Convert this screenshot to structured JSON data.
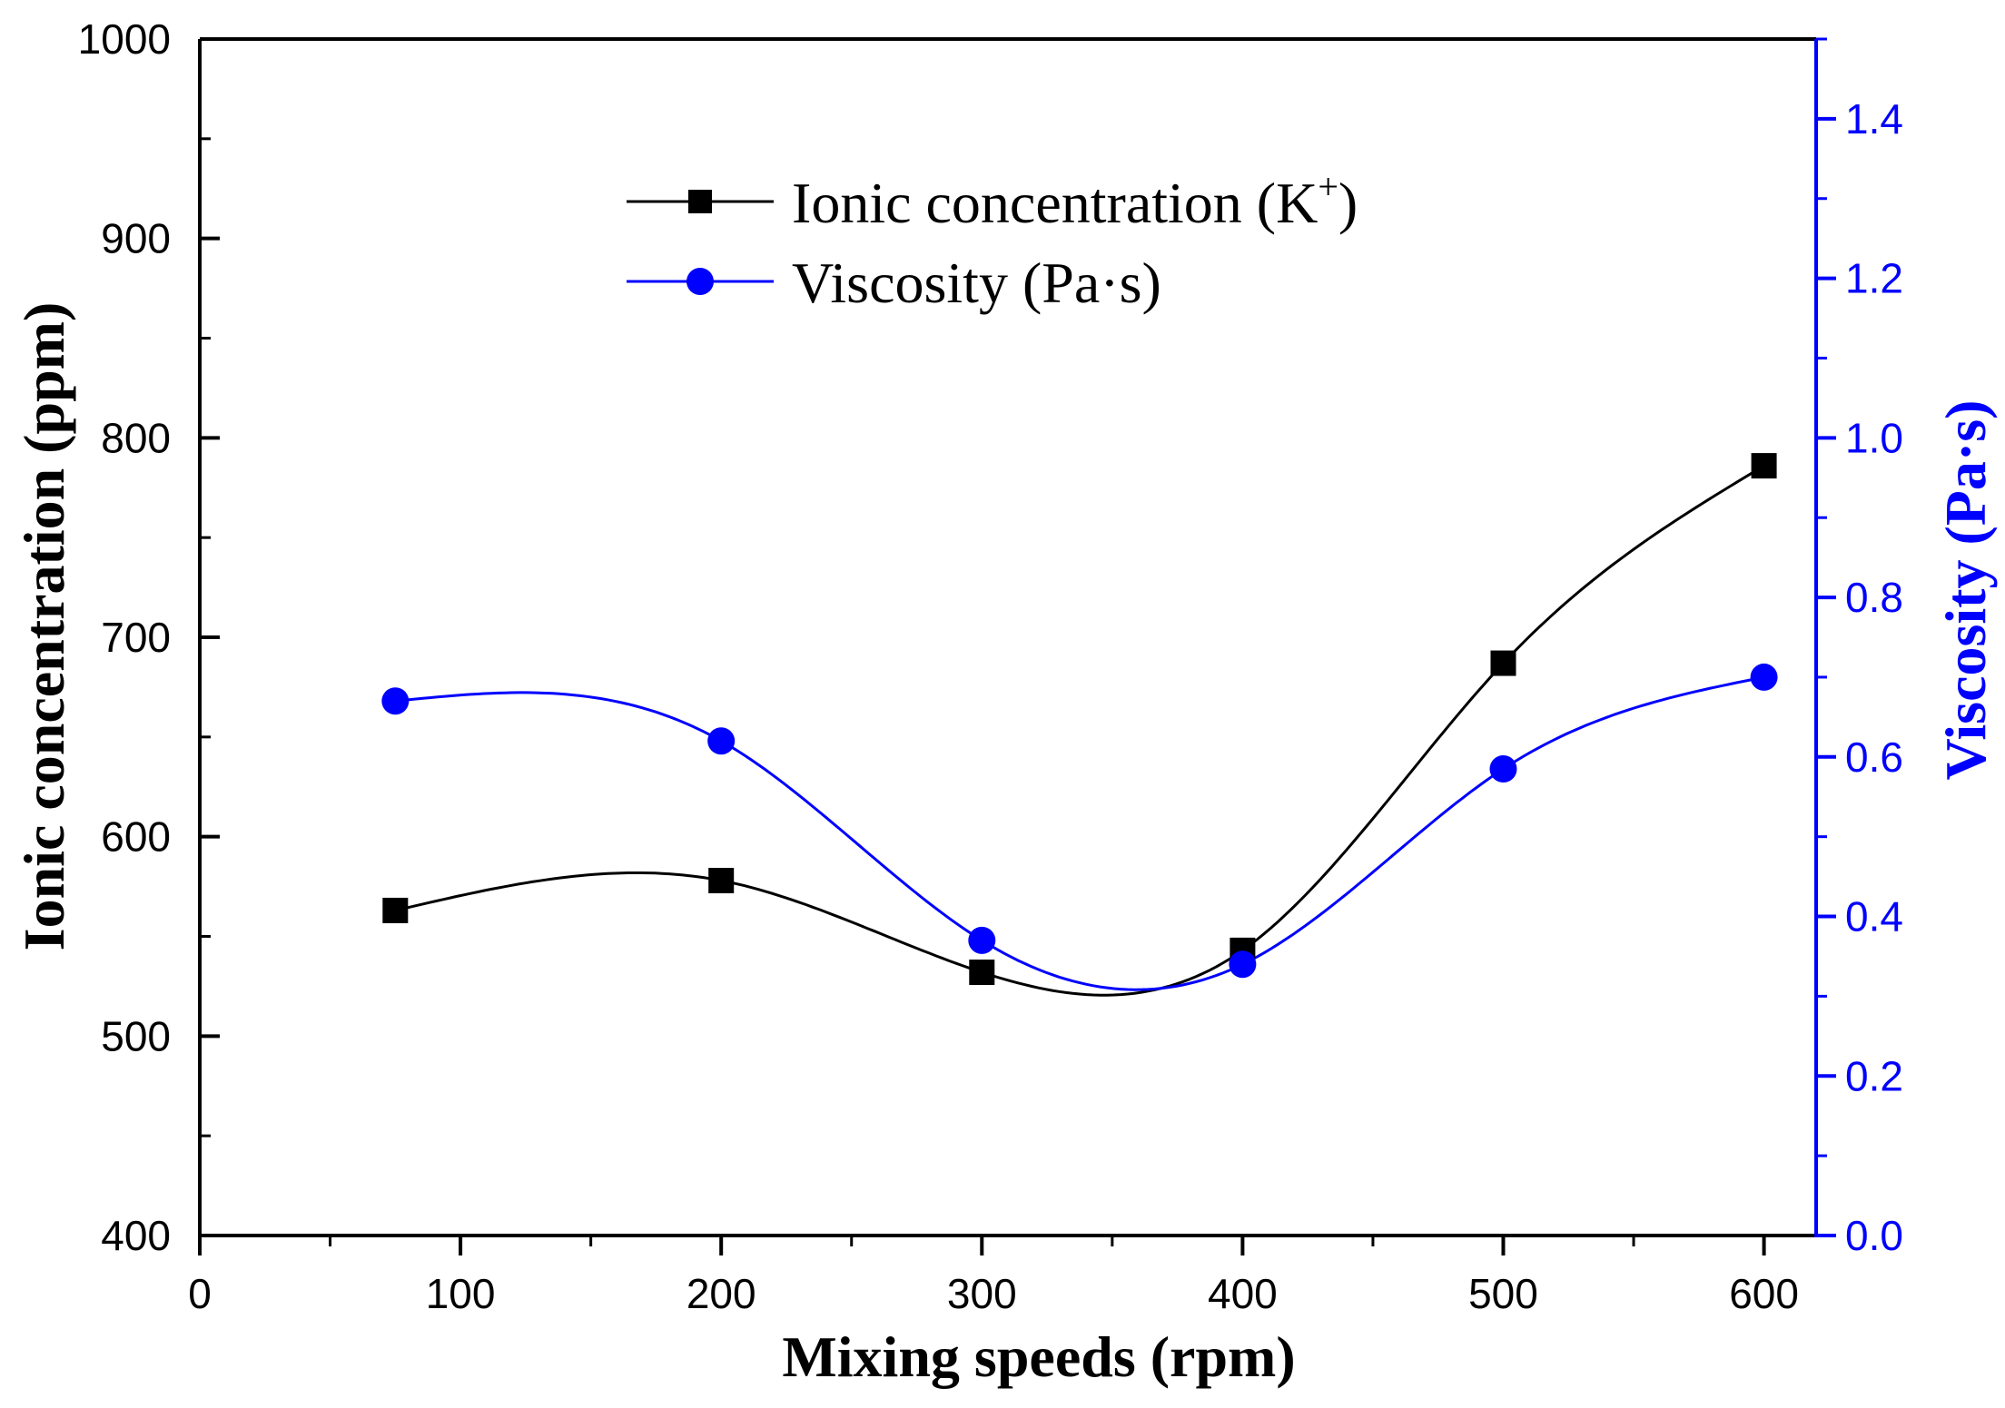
{
  "chart_data": {
    "type": "line",
    "title": "",
    "xlabel": "Mixing speeds (rpm)",
    "ylabel_left": "Ionic concentration (ppm)",
    "ylabel_right": "Viscosity (Pa·s)",
    "xlim": [
      0,
      620
    ],
    "ylim_left": [
      400,
      1000
    ],
    "ylim_right": [
      0.0,
      1.5
    ],
    "x_ticks": [
      "0",
      "100",
      "200",
      "300",
      "400",
      "500",
      "600"
    ],
    "y_left_ticks": [
      "400",
      "500",
      "600",
      "700",
      "800",
      "900",
      "1000"
    ],
    "y_right_ticks": [
      "0.0",
      "0.2",
      "0.4",
      "0.6",
      "0.8",
      "1.0",
      "1.2",
      "1.4"
    ],
    "grid": false,
    "legend_position": "top-center",
    "colors": {
      "ionic": "#000000",
      "viscosity": "#0000ff"
    },
    "series": [
      {
        "name": "Ionic concentration (K+)",
        "label_main": "Ionic concentration (K",
        "label_sup": "+",
        "label_end": ")",
        "axis": "left",
        "marker": "square",
        "x": [
          75,
          200,
          300,
          400,
          500,
          600
        ],
        "values": [
          563,
          578,
          532,
          543,
          687,
          786
        ]
      },
      {
        "name": "Viscosity (Pa·s)",
        "label_main": "Viscosity (Pa·s)",
        "axis": "right",
        "marker": "circle",
        "x": [
          75,
          200,
          300,
          400,
          500,
          600
        ],
        "values": [
          0.67,
          0.62,
          0.37,
          0.34,
          0.585,
          0.7
        ]
      }
    ]
  }
}
